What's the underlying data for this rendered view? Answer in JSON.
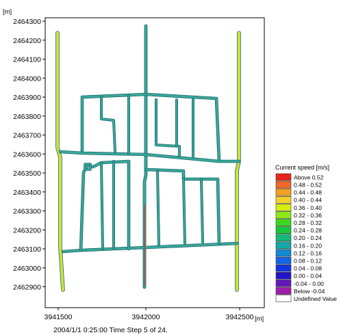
{
  "axes": {
    "y_unit": "[m]",
    "x_unit": "[m]",
    "y_ticks": [
      "2464300",
      "2464200",
      "2464100",
      "2464000",
      "2463900",
      "2463800",
      "2463700",
      "2463600",
      "2463500",
      "2463400",
      "2463300",
      "2463200",
      "2463100",
      "2463000",
      "2462900"
    ],
    "x_ticks": [
      "3941500",
      "3942000",
      "3942500"
    ]
  },
  "legend": {
    "title": "Current speed [m/s]",
    "entries": [
      {
        "label": "Above  0.52",
        "color": "#e8241c"
      },
      {
        "label": "0.48 - 0.52",
        "color": "#f06828"
      },
      {
        "label": "0.44 - 0.48",
        "color": "#f4a020"
      },
      {
        "label": "0.40 - 0.44",
        "color": "#f4d028"
      },
      {
        "label": "0.36 - 0.40",
        "color": "#d6ec10"
      },
      {
        "label": "0.32 - 0.36",
        "color": "#8ce814"
      },
      {
        "label": "0.28 - 0.32",
        "color": "#3cd81c"
      },
      {
        "label": "0.24 - 0.28",
        "color": "#14c83c"
      },
      {
        "label": "0.20 - 0.24",
        "color": "#14b878"
      },
      {
        "label": "0.16 - 0.20",
        "color": "#14a8a8"
      },
      {
        "label": "0.12 - 0.16",
        "color": "#1488d4"
      },
      {
        "label": "0.08 - 0.12",
        "color": "#1464e8"
      },
      {
        "label": "0.04 - 0.08",
        "color": "#1434e0"
      },
      {
        "label": "0.00 - 0.04",
        "color": "#2414c8"
      },
      {
        "label": "-0.04 - 0.00",
        "color": "#6418bc"
      },
      {
        "label": "Below -0.04",
        "color": "#9c1cac"
      },
      {
        "label": "Undefined Value",
        "color": "#ffffff"
      }
    ]
  },
  "footer": "2004/1/1 0:25:00  Time Step 5 of 24.",
  "colors": {
    "channel_main": "#3aa898",
    "channel_fast": "#cfe03a",
    "channel_edge": "#1a6a70",
    "channel_peak": "#d8382a"
  }
}
